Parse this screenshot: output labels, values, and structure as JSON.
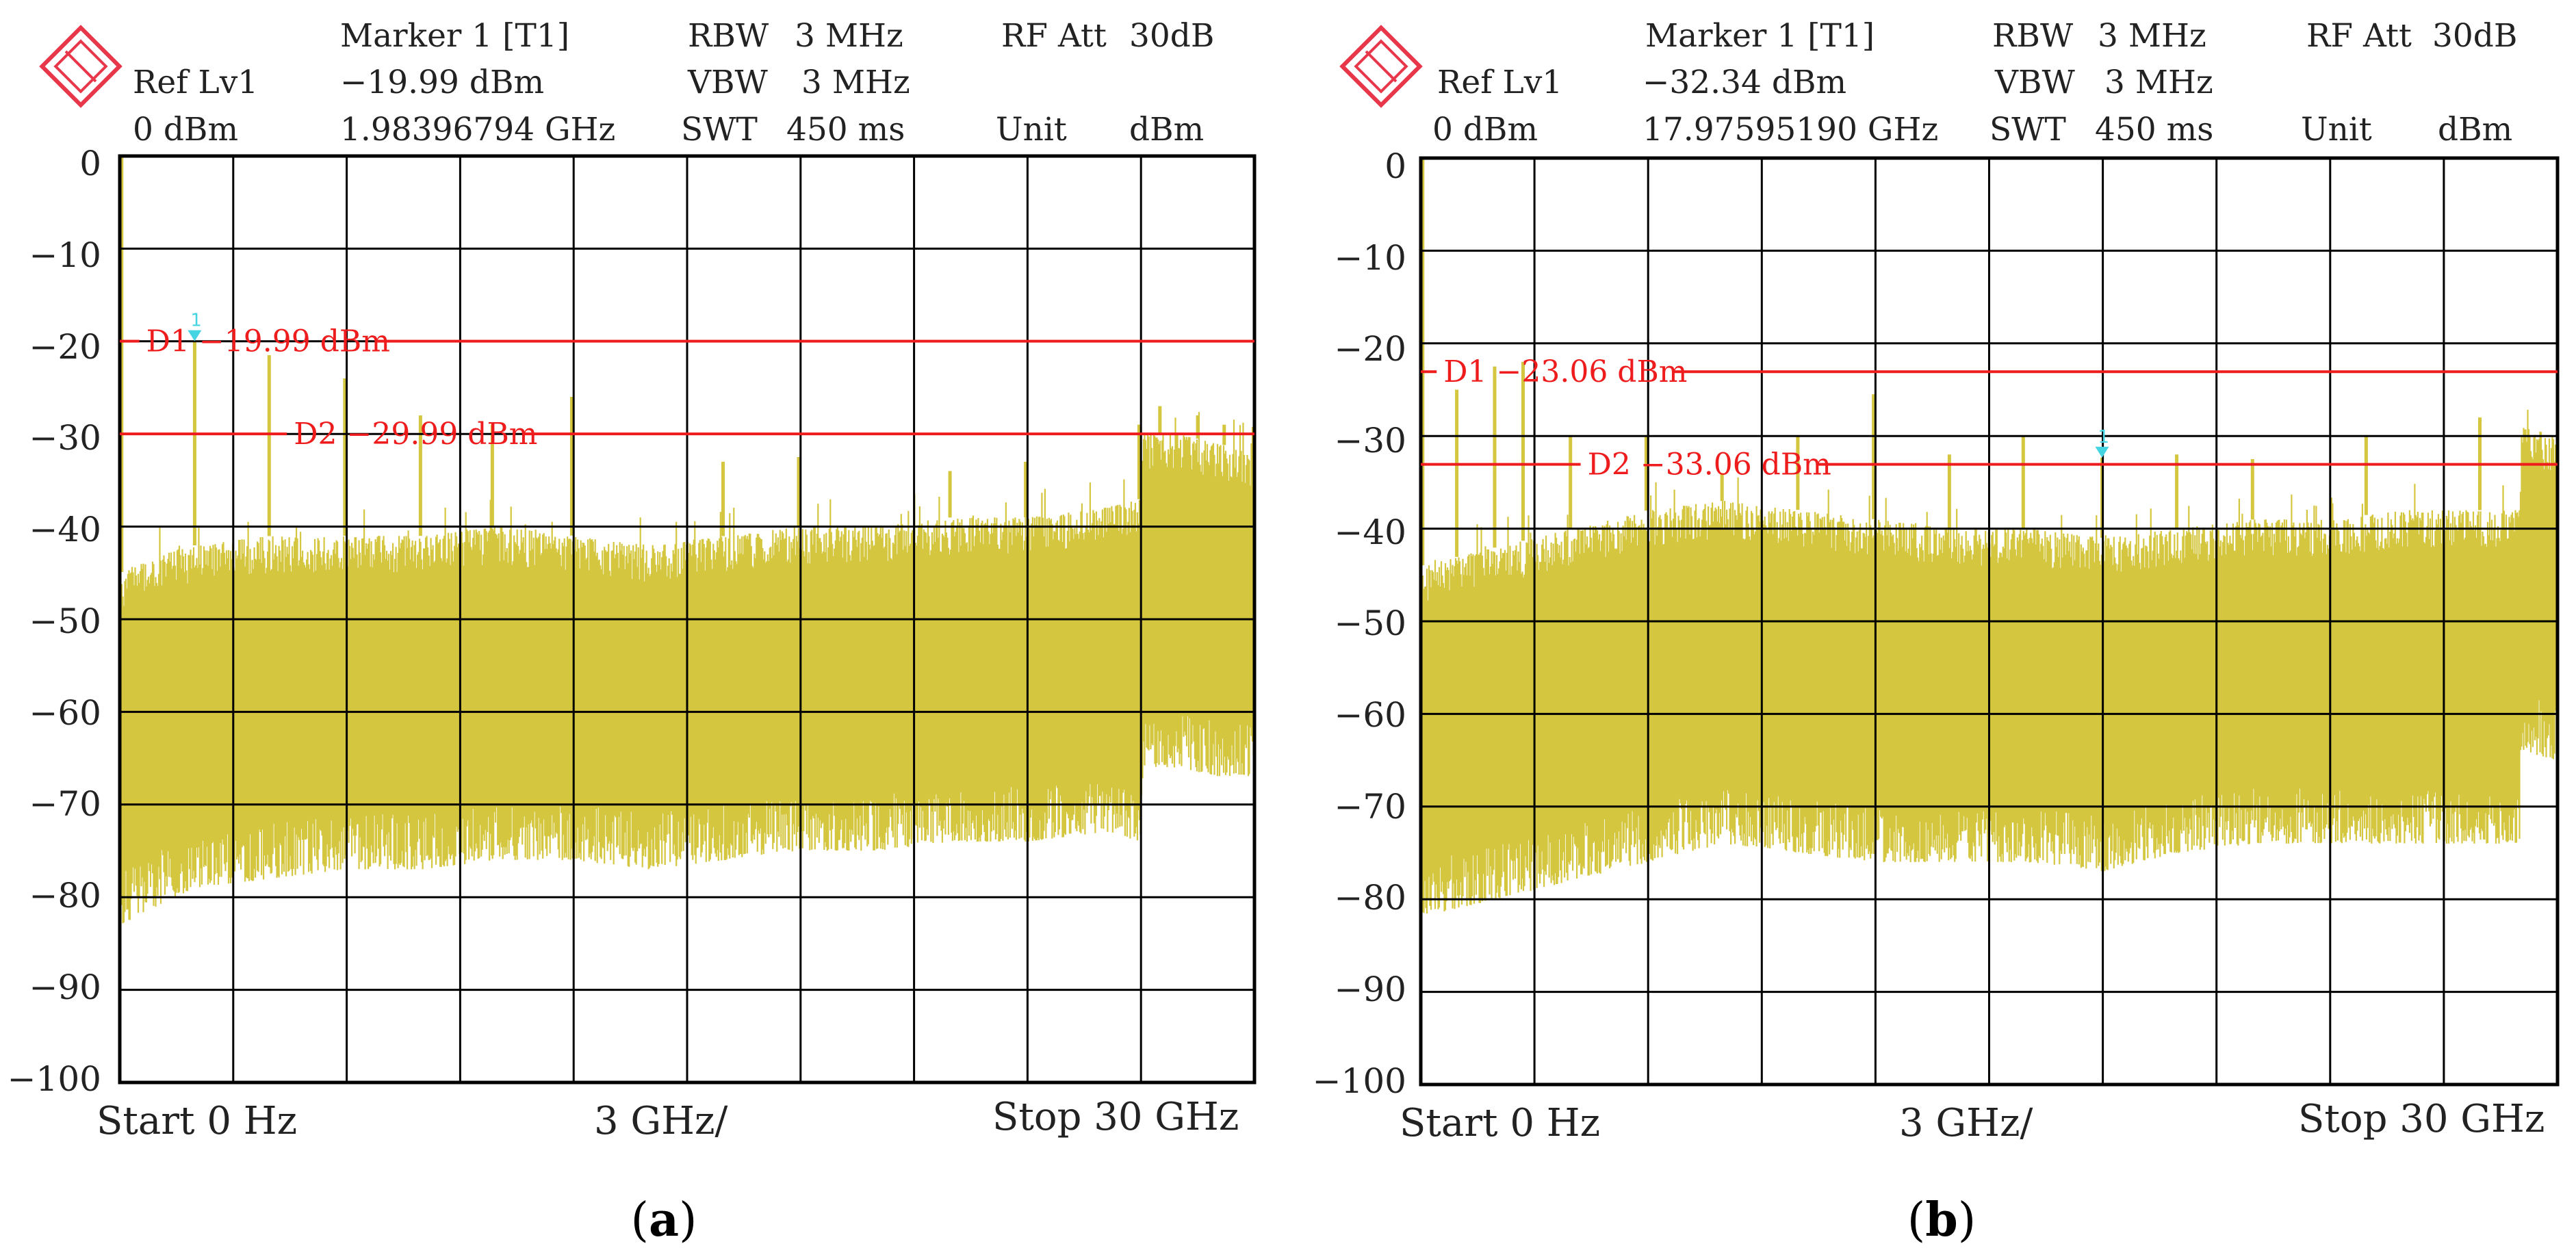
{
  "colors": {
    "trace": "#d4c63e",
    "display_line": "#ee1c1c",
    "marker": "#45d4e2",
    "logo": "#e8364a",
    "grid": "#000000"
  },
  "panels": [
    {
      "caption_letter": "a",
      "header": {
        "ref_label": "Ref Lv1",
        "ref_value": "0 dBm",
        "marker_title": "Marker 1 [T1]",
        "marker_level": "−19.99 dBm",
        "marker_freq": "1.98396794 GHz",
        "rbw_label": "RBW",
        "rbw_value": "3 MHz",
        "vbw_label": "VBW",
        "vbw_value": "3 MHz",
        "swt_label": "SWT",
        "swt_value": "450 ms",
        "rfatt_label": "RF Att",
        "rfatt_value": "30dB",
        "unit_label": "Unit",
        "unit_value": "dBm"
      },
      "footer": {
        "start": "Start 0 Hz",
        "span": "3 GHz/",
        "stop": "Stop 30 GHz"
      },
      "display_lines": [
        {
          "label": "D1 −19.99 dBm",
          "level": -19.99,
          "label_x_ghz": 0.7
        },
        {
          "label": "D2 −29.99 dBm",
          "level": -29.99,
          "label_x_ghz": 4.6
        }
      ],
      "marker": {
        "number": "1",
        "x_ghz": 1.98,
        "level": -19.99
      }
    },
    {
      "caption_letter": "b",
      "header": {
        "ref_label": "Ref Lv1",
        "ref_value": "0 dBm",
        "marker_title": "Marker 1 [T1]",
        "marker_level": "−32.34 dBm",
        "marker_freq": "17.97595190 GHz",
        "rbw_label": "RBW",
        "rbw_value": "3 MHz",
        "vbw_label": "VBW",
        "vbw_value": "3 MHz",
        "swt_label": "SWT",
        "swt_value": "450 ms",
        "rfatt_label": "RF Att",
        "rfatt_value": "30dB",
        "unit_label": "Unit",
        "unit_value": "dBm"
      },
      "footer": {
        "start": "Start 0 Hz",
        "span": "3 GHz/",
        "stop": "Stop 30 GHz"
      },
      "display_lines": [
        {
          "label": "D1 −23.06 dBm",
          "level": -23.06,
          "label_x_ghz": 0.6
        },
        {
          "label": "D2 −33.06 dBm",
          "level": -33.06,
          "label_x_ghz": 4.4
        }
      ],
      "marker": {
        "number": "1",
        "x_ghz": 17.98,
        "level": -32.34
      }
    }
  ],
  "chart_data": [
    {
      "type": "line",
      "xlim": [
        0,
        30
      ],
      "ylim": [
        -100,
        0
      ],
      "x_divisions": 10,
      "y_ticks": [
        "0",
        "−10",
        "−20",
        "−30",
        "−40",
        "−50",
        "−60",
        "−70",
        "−80",
        "−90",
        "−100"
      ],
      "grid": true,
      "envelope": {
        "x_ghz": [
          0,
          1,
          2,
          4,
          6,
          8,
          10,
          12,
          14,
          16,
          18,
          20,
          22,
          24,
          26,
          27.0,
          27.05,
          28,
          29,
          30
        ],
        "max_dbm": [
          -45,
          -43,
          -42,
          -41,
          -41,
          -41,
          -40,
          -41,
          -42,
          -41,
          -40,
          -40,
          -39,
          -39,
          -38,
          -37,
          -30,
          -30,
          -31,
          -32
        ],
        "min_dbm": [
          -79,
          -77,
          -75,
          -74,
          -73,
          -73,
          -72,
          -72,
          -73,
          -72,
          -71,
          -71,
          -70,
          -70,
          -69,
          -70,
          -62,
          -62,
          -63,
          -63
        ]
      },
      "spurs": {
        "x_ghz": [
          0.05,
          1.98,
          3.95,
          5.95,
          7.95,
          9.85,
          11.95,
          15.95,
          17.95,
          21.95,
          23.95,
          26.95,
          27.5,
          28.5,
          29.2
        ],
        "peak_dbm": [
          0,
          -19.99,
          -21.5,
          -24,
          -28,
          -29,
          -26,
          -33,
          -32.5,
          -34,
          -33,
          -29,
          -27,
          -28,
          -29
        ]
      }
    },
    {
      "type": "line",
      "xlim": [
        0,
        30
      ],
      "ylim": [
        -100,
        0
      ],
      "x_divisions": 10,
      "y_ticks": [
        "0",
        "−10",
        "−20",
        "−30",
        "−40",
        "−50",
        "−60",
        "−70",
        "−80",
        "−90",
        "−100"
      ],
      "grid": true,
      "envelope": {
        "x_ghz": [
          0,
          1,
          2,
          4,
          6,
          8,
          10,
          12,
          14,
          16,
          18,
          20,
          22,
          24,
          26,
          29.0,
          29.05,
          30
        ],
        "max_dbm": [
          -44,
          -43,
          -42,
          -40,
          -38,
          -37,
          -38,
          -39,
          -40,
          -40,
          -41,
          -40,
          -39,
          -39,
          -38,
          -38,
          -29,
          -30
        ],
        "min_dbm": [
          -78,
          -77,
          -76,
          -74,
          -72,
          -70,
          -71,
          -72,
          -72,
          -72,
          -73,
          -71,
          -70,
          -70,
          -70,
          -70,
          -60,
          -61
        ]
      },
      "spurs": {
        "x_ghz": [
          0.05,
          0.95,
          1.95,
          2.7,
          3.95,
          5.95,
          7.95,
          9.95,
          11.95,
          13.95,
          15.9,
          17.98,
          19.95,
          21.95,
          24.95,
          27.95
        ],
        "peak_dbm": [
          0,
          -25,
          -22.5,
          -22.0,
          -30,
          -30,
          -34,
          -30,
          -25.5,
          -32,
          -30,
          -32.34,
          -32,
          -32.5,
          -30,
          -28
        ]
      }
    }
  ]
}
